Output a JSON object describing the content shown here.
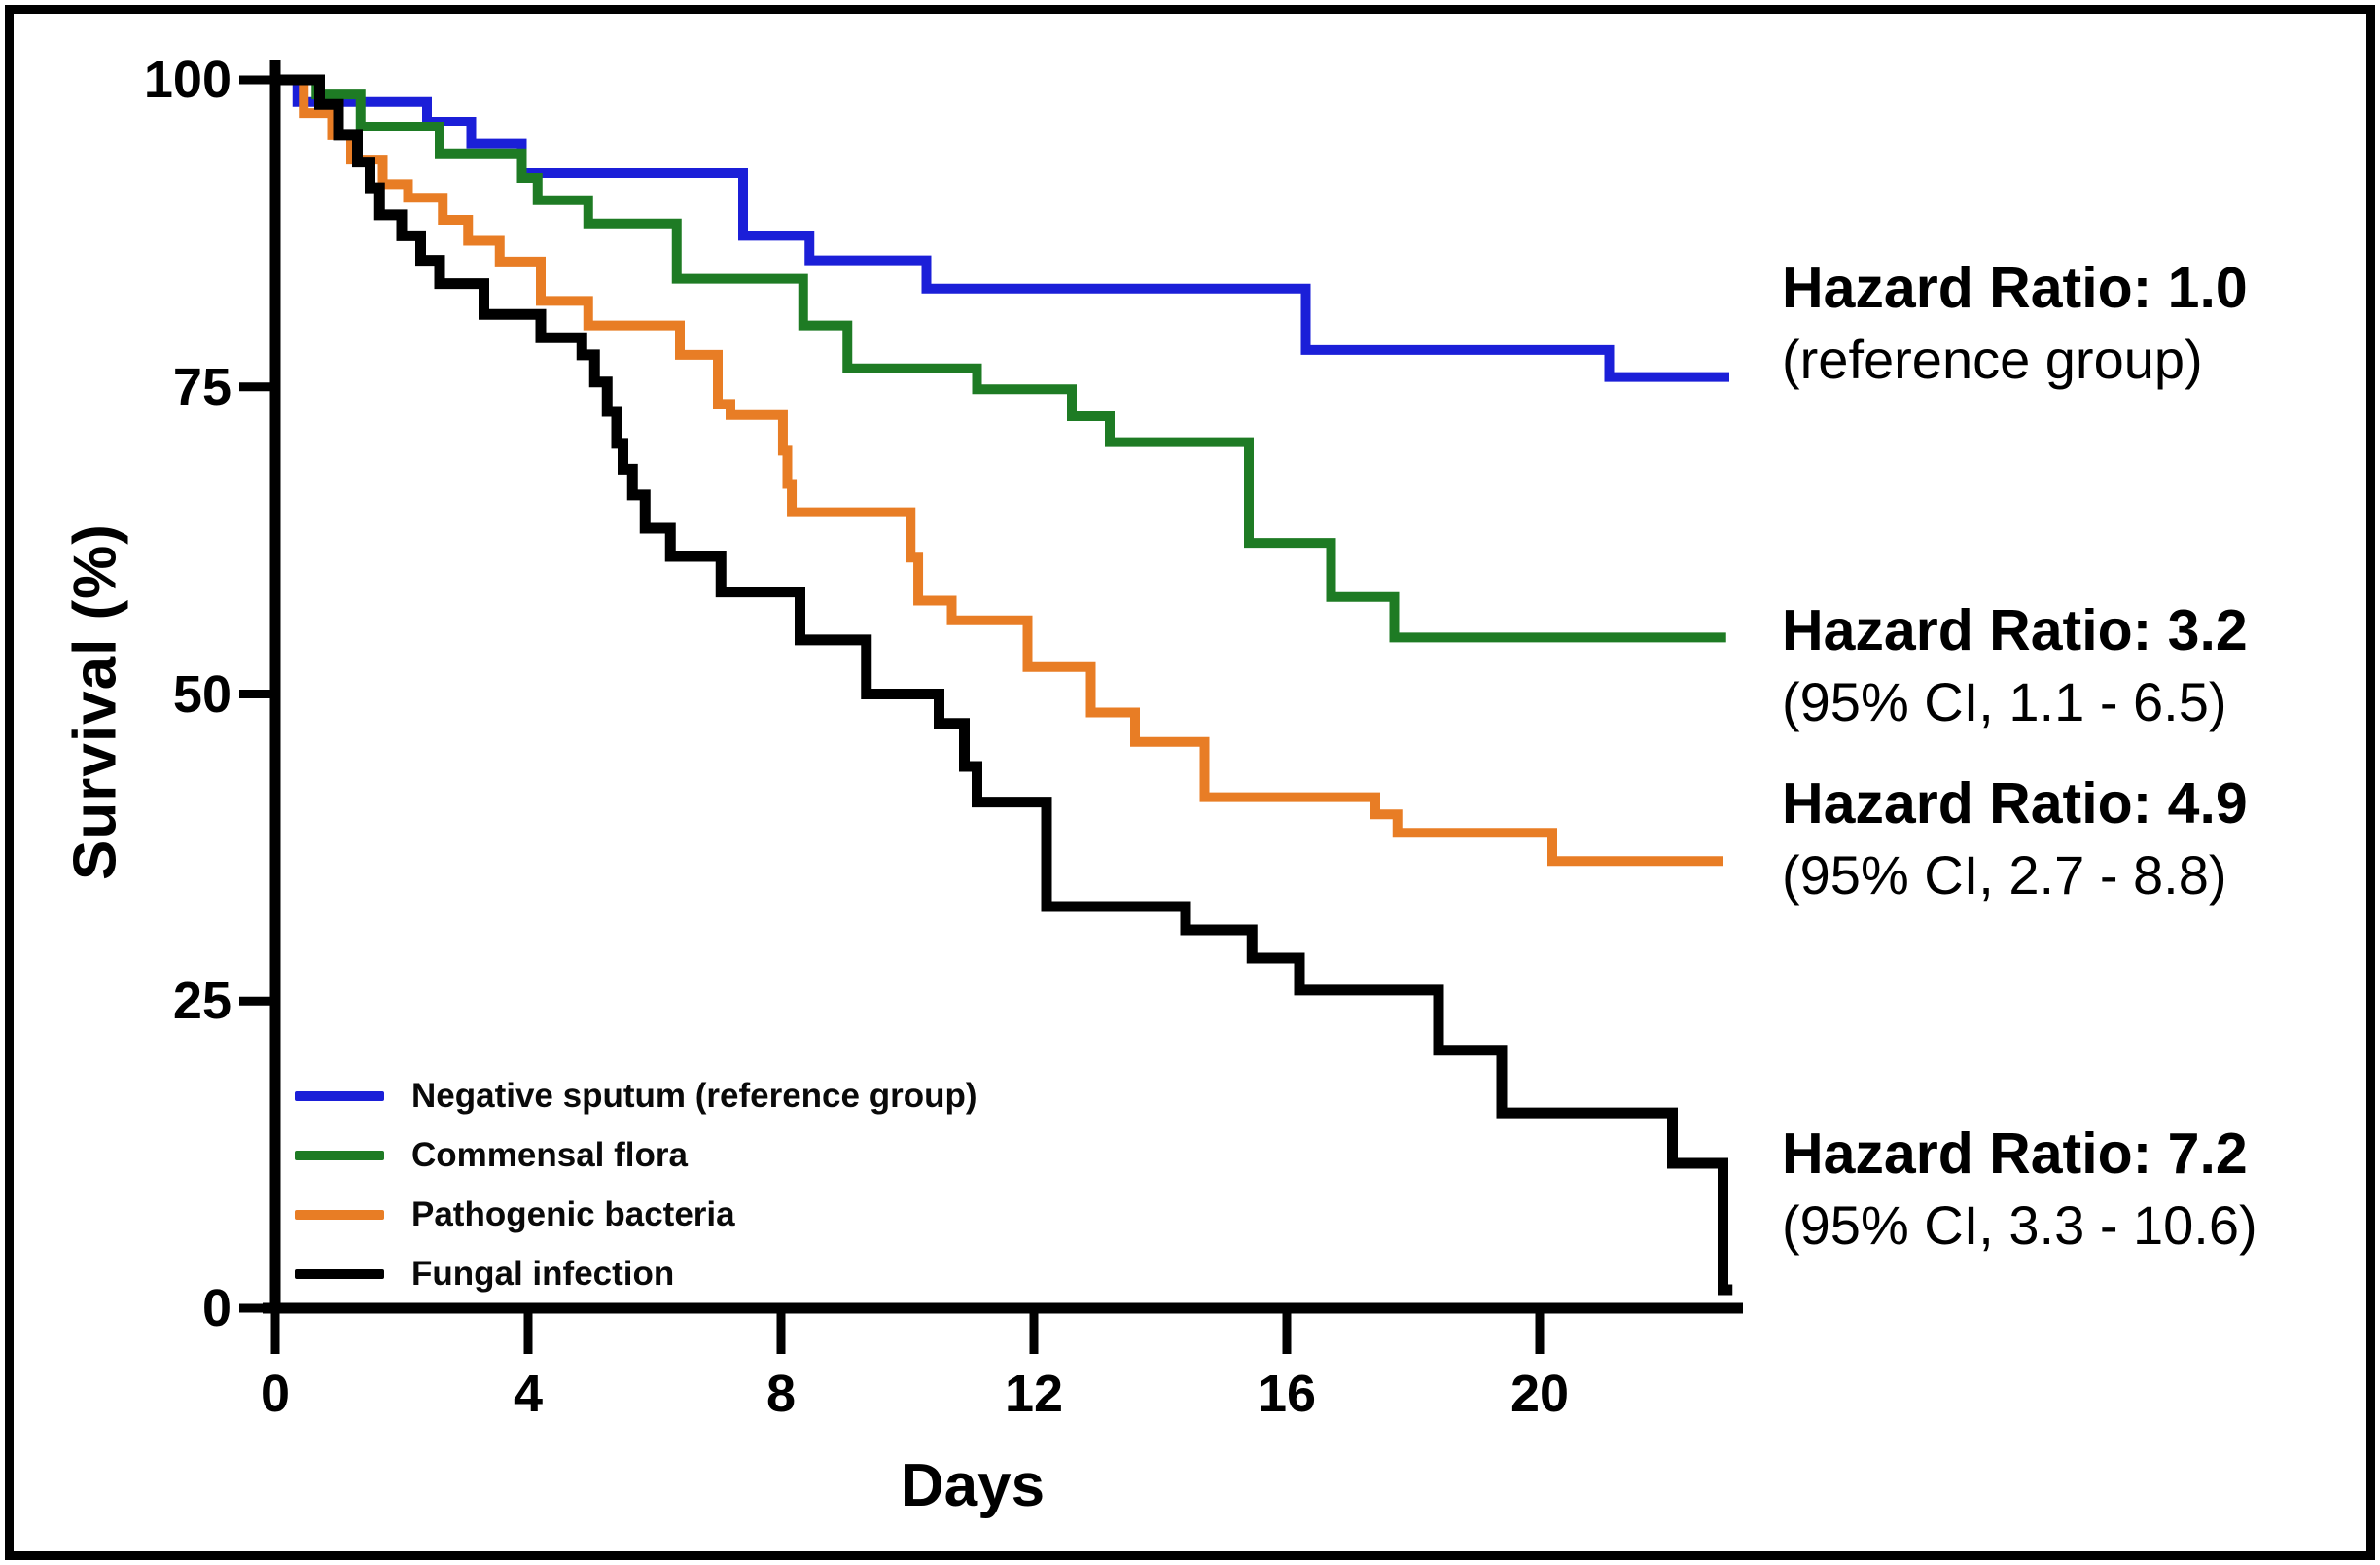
{
  "figure": {
    "ylabel": "Survival (%)",
    "xlabel": "Days",
    "y_ticks": [
      100,
      75,
      50,
      25,
      0
    ],
    "x_ticks": [
      0,
      4,
      8,
      12,
      16,
      20
    ],
    "axis_color": "#000000",
    "background": "#ffffff"
  },
  "legend": {
    "items": [
      {
        "label": "Negative sputum (reference group)",
        "color": "#1b1fd8"
      },
      {
        "label": "Commensal flora",
        "color": "#1e7b24"
      },
      {
        "label": "Pathogenic bacteria",
        "color": "#e87d25"
      },
      {
        "label": "Fungal infection",
        "color": "#000000"
      }
    ]
  },
  "annotations": [
    {
      "line1": "Hazard Ratio: 1.0",
      "line2": "(reference group)"
    },
    {
      "line1": "Hazard Ratio: 3.2",
      "line2": "(95% CI, 1.1 - 6.5)"
    },
    {
      "line1": "Hazard Ratio: 4.9",
      "line2": "(95% CI, 2.7 - 8.8)"
    },
    {
      "line1": "Hazard Ratio: 7.2",
      "line2": "(95% CI, 3.3 - 10.6)"
    }
  ],
  "chart_data": {
    "type": "line",
    "subtype": "kaplan-meier-step",
    "title": "",
    "xlabel": "Days",
    "ylabel": "Survival (%)",
    "xlim": [
      0,
      23
    ],
    "ylim": [
      0,
      100
    ],
    "x_ticks": [
      0,
      4,
      8,
      12,
      16,
      20
    ],
    "y_ticks": [
      0,
      25,
      50,
      75,
      100
    ],
    "grid": false,
    "legend_position": "lower-left",
    "series": [
      {
        "name": "Negative sputum (reference group)",
        "color": "#1b1fd8",
        "hazard_ratio": "1.0",
        "ci": "reference group",
        "end_day": 23.0,
        "points": [
          [
            0,
            100
          ],
          [
            0.35,
            98.2
          ],
          [
            2.4,
            96.6
          ],
          [
            3.1,
            94.8
          ],
          [
            3.9,
            92.4
          ],
          [
            7.4,
            87.3
          ],
          [
            8.45,
            85.3
          ],
          [
            10.3,
            83.0
          ],
          [
            16.3,
            78.0
          ],
          [
            21.1,
            75.8
          ]
        ]
      },
      {
        "name": "Commensal flora",
        "color": "#1e7b24",
        "hazard_ratio": "3.2",
        "ci": "95% CI, 1.1 - 6.5",
        "end_day": 22.95,
        "points": [
          [
            0,
            100
          ],
          [
            0.65,
            98.8
          ],
          [
            1.35,
            96.2
          ],
          [
            2.6,
            94.0
          ],
          [
            3.9,
            92.0
          ],
          [
            4.15,
            90.2
          ],
          [
            4.95,
            88.3
          ],
          [
            6.35,
            83.8
          ],
          [
            8.35,
            80.0
          ],
          [
            9.05,
            76.5
          ],
          [
            11.1,
            74.8
          ],
          [
            12.6,
            72.6
          ],
          [
            13.2,
            70.5
          ],
          [
            15.4,
            62.3
          ],
          [
            16.7,
            57.9
          ],
          [
            17.7,
            54.6
          ]
        ]
      },
      {
        "name": "Pathogenic bacteria",
        "color": "#e87d25",
        "hazard_ratio": "4.9",
        "ci": "95% CI, 2.7 - 8.8",
        "end_day": 22.9,
        "points": [
          [
            0,
            100
          ],
          [
            0.45,
            97.3
          ],
          [
            0.9,
            95.5
          ],
          [
            1.2,
            93.5
          ],
          [
            1.7,
            91.5
          ],
          [
            2.1,
            90.4
          ],
          [
            2.65,
            88.6
          ],
          [
            3.05,
            86.9
          ],
          [
            3.55,
            85.2
          ],
          [
            4.2,
            82.0
          ],
          [
            4.95,
            80.0
          ],
          [
            6.4,
            77.6
          ],
          [
            7.0,
            73.6
          ],
          [
            7.2,
            72.7
          ],
          [
            8.03,
            69.8
          ],
          [
            8.1,
            67.1
          ],
          [
            8.17,
            64.8
          ],
          [
            10.05,
            61.1
          ],
          [
            10.17,
            57.6
          ],
          [
            10.7,
            56.0
          ],
          [
            11.9,
            52.2
          ],
          [
            12.9,
            48.5
          ],
          [
            13.6,
            46.1
          ],
          [
            14.7,
            41.6
          ],
          [
            17.4,
            40.2
          ],
          [
            17.75,
            38.7
          ],
          [
            20.2,
            36.4
          ]
        ]
      },
      {
        "name": "Fungal infection",
        "color": "#000000",
        "hazard_ratio": "7.2",
        "ci": "95% CI, 3.3 - 10.6",
        "end_day": 23.05,
        "points": [
          [
            0,
            100
          ],
          [
            0.7,
            98.0
          ],
          [
            1.0,
            95.5
          ],
          [
            1.3,
            93.3
          ],
          [
            1.5,
            91.2
          ],
          [
            1.65,
            89.0
          ],
          [
            2.0,
            87.3
          ],
          [
            2.3,
            85.3
          ],
          [
            2.6,
            83.4
          ],
          [
            3.3,
            80.9
          ],
          [
            4.2,
            79.0
          ],
          [
            4.85,
            77.6
          ],
          [
            5.05,
            75.4
          ],
          [
            5.25,
            73.0
          ],
          [
            5.4,
            70.4
          ],
          [
            5.5,
            68.3
          ],
          [
            5.65,
            66.2
          ],
          [
            5.85,
            63.5
          ],
          [
            6.25,
            61.2
          ],
          [
            7.05,
            58.3
          ],
          [
            8.3,
            54.4
          ],
          [
            9.35,
            50.0
          ],
          [
            10.5,
            47.6
          ],
          [
            10.9,
            44.1
          ],
          [
            11.1,
            41.2
          ],
          [
            12.2,
            32.7
          ],
          [
            14.4,
            30.8
          ],
          [
            15.45,
            28.5
          ],
          [
            16.2,
            25.9
          ],
          [
            18.4,
            21.0
          ],
          [
            19.4,
            15.9
          ],
          [
            22.1,
            11.8
          ],
          [
            22.9,
            1.5
          ]
        ]
      }
    ]
  }
}
